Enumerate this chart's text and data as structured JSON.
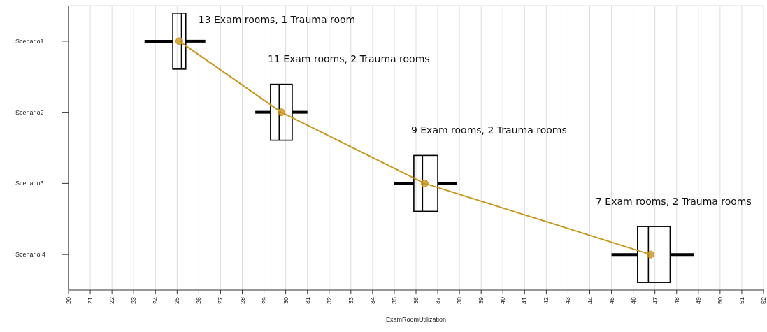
{
  "chart_data": {
    "type": "box",
    "orientation": "horizontal",
    "categories": [
      "Scenario1",
      "Scenario2",
      "Scenario3",
      "Scenario 4"
    ],
    "xlabel": "ExamRoomUtilization",
    "xlim": [
      20,
      52
    ],
    "xticks": [
      20,
      21,
      22,
      23,
      24,
      25,
      26,
      27,
      28,
      29,
      30,
      31,
      32,
      33,
      34,
      35,
      36,
      37,
      38,
      39,
      40,
      41,
      42,
      43,
      44,
      45,
      46,
      47,
      48,
      49,
      50,
      51,
      52
    ],
    "grid": "x",
    "series": [
      {
        "color": "#000000",
        "boxes": [
          {
            "low": 23.5,
            "q1": 24.8,
            "median": 25.2,
            "q3": 25.4,
            "high": 26.3
          },
          {
            "low": 28.6,
            "q1": 29.3,
            "median": 29.7,
            "q3": 30.3,
            "high": 31.0
          },
          {
            "low": 35.0,
            "q1": 35.9,
            "median": 36.3,
            "q3": 37.0,
            "high": 37.9
          },
          {
            "low": 45.0,
            "q1": 46.2,
            "median": 46.7,
            "q3": 47.7,
            "high": 48.8
          }
        ]
      },
      {
        "type": "line",
        "color": "#c8961e",
        "marker": "circle",
        "values": [
          25.1,
          29.8,
          36.4,
          46.8
        ]
      }
    ],
    "annotations": [
      "13 Exam rooms, 1 Trauma room",
      "11 Exam rooms, 2 Trauma rooms",
      "9 Exam rooms, 2 Trauma rooms",
      "7 Exam rooms, 2 Trauma rooms"
    ]
  }
}
